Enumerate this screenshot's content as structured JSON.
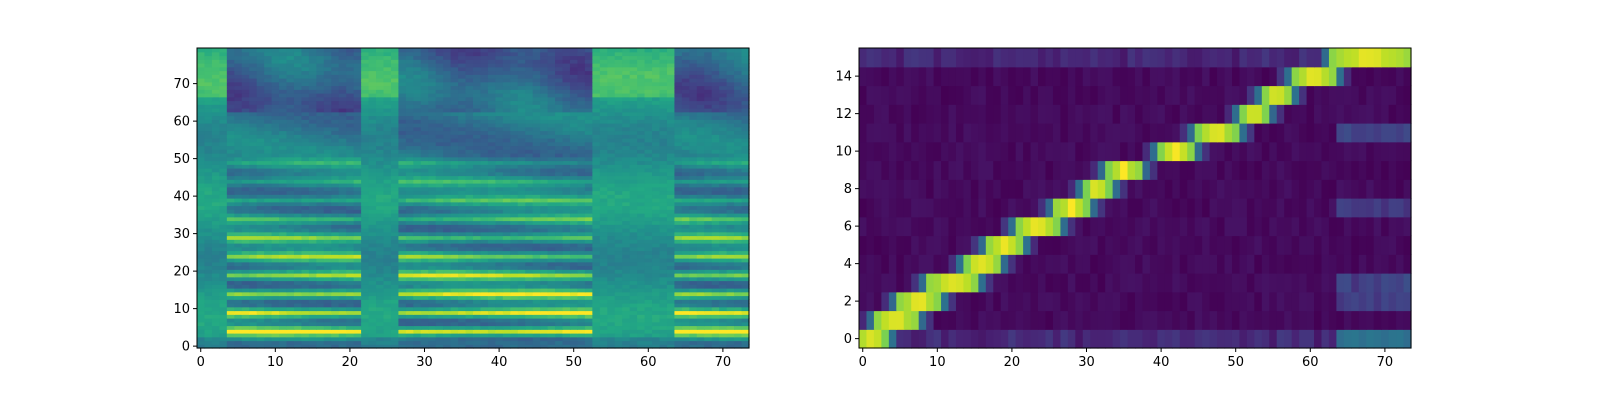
{
  "chart_data": [
    {
      "type": "heatmap",
      "title": "",
      "xlabel": "",
      "ylabel": "",
      "xlim": [
        -0.5,
        73.5
      ],
      "ylim": [
        -0.5,
        79.5
      ],
      "xticks": [
        0,
        10,
        20,
        30,
        40,
        50,
        60,
        70
      ],
      "yticks": [
        0,
        10,
        20,
        30,
        40,
        50,
        60,
        70
      ],
      "n_cols": 74,
      "n_rows": 80,
      "colormap": "viridis",
      "voiced_segments": [
        [
          4,
          21
        ],
        [
          27,
          52
        ],
        [
          64,
          73
        ]
      ],
      "unvoiced_segments": [
        [
          0,
          3
        ],
        [
          22,
          26
        ],
        [
          53,
          63
        ]
      ],
      "dark_vertical_band": [
        58,
        62
      ],
      "harmonic_rows": [
        4,
        9,
        14,
        19,
        24,
        29,
        34,
        39,
        44,
        49
      ]
    },
    {
      "type": "heatmap",
      "title": "",
      "xlabel": "",
      "ylabel": "",
      "xlim": [
        -0.5,
        73.5
      ],
      "ylim": [
        -0.5,
        15.5
      ],
      "xticks": [
        0,
        10,
        20,
        30,
        40,
        50,
        60,
        70
      ],
      "yticks": [
        0,
        2,
        4,
        6,
        8,
        10,
        12,
        14
      ],
      "n_cols": 74,
      "n_rows": 16,
      "colormap": "viridis",
      "alignment_path": [
        {
          "row": 0,
          "x_start": -0.5,
          "x_end": 3
        },
        {
          "row": 1,
          "x_start": 2,
          "x_end": 7
        },
        {
          "row": 2,
          "x_start": 5,
          "x_end": 10
        },
        {
          "row": 3,
          "x_start": 9,
          "x_end": 15
        },
        {
          "row": 4,
          "x_start": 14,
          "x_end": 18
        },
        {
          "row": 5,
          "x_start": 17,
          "x_end": 21
        },
        {
          "row": 6,
          "x_start": 21,
          "x_end": 26
        },
        {
          "row": 7,
          "x_start": 26,
          "x_end": 30
        },
        {
          "row": 8,
          "x_start": 30,
          "x_end": 33
        },
        {
          "row": 9,
          "x_start": 33,
          "x_end": 37
        },
        {
          "row": 10,
          "x_start": 40,
          "x_end": 44
        },
        {
          "row": 11,
          "x_start": 45,
          "x_end": 50
        },
        {
          "row": 12,
          "x_start": 51,
          "x_end": 54
        },
        {
          "row": 13,
          "x_start": 54,
          "x_end": 57
        },
        {
          "row": 14,
          "x_start": 58,
          "x_end": 63
        },
        {
          "row": 15,
          "x_start": 63,
          "x_end": 73.5
        }
      ]
    }
  ]
}
